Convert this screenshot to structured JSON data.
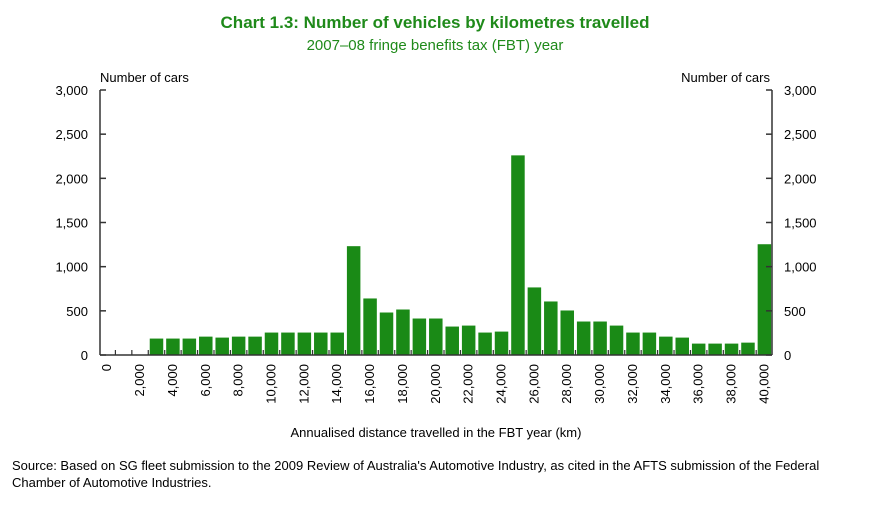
{
  "chart_data": {
    "type": "bar",
    "title": "Chart 1.3: Number of vehicles by kilometres travelled",
    "subtitle": "2007–08 fringe benefits tax (FBT) year",
    "xlabel": "Annualised distance travelled in the FBT year (km)",
    "ylabel_left": "Number of cars",
    "ylabel_right": "Number of cars",
    "ylim": [
      0,
      3000
    ],
    "yticks": [
      "0",
      "500",
      "1,000",
      "1,500",
      "2,000",
      "2,500",
      "3,000"
    ],
    "x": [
      0,
      1000,
      2000,
      3000,
      4000,
      5000,
      6000,
      7000,
      8000,
      9000,
      10000,
      11000,
      12000,
      13000,
      14000,
      15000,
      16000,
      17000,
      18000,
      19000,
      20000,
      21000,
      22000,
      23000,
      24000,
      25000,
      26000,
      27000,
      28000,
      29000,
      30000,
      31000,
      32000,
      33000,
      34000,
      35000,
      36000,
      37000,
      38000,
      39000,
      40000
    ],
    "xtick_labels": [
      "0",
      "2,000",
      "4,000",
      "6,000",
      "8,000",
      "10,000",
      "12,000",
      "14,000",
      "16,000",
      "18,000",
      "20,000",
      "22,000",
      "24,000",
      "26,000",
      "28,000",
      "30,000",
      "32,000",
      "34,000",
      "36,000",
      "38,000",
      "40,000"
    ],
    "values": [
      0,
      0,
      0,
      186,
      186,
      186,
      208,
      197,
      208,
      208,
      254,
      254,
      254,
      254,
      254,
      1232,
      640,
      481,
      515,
      413,
      413,
      322,
      333,
      254,
      265,
      2260,
      765,
      606,
      504,
      379,
      379,
      333,
      254,
      254,
      208,
      197,
      129,
      129,
      129,
      140,
      1254
    ],
    "color": "#1a8a16"
  },
  "source": "Source: Based on SG fleet submission to the 2009 Review of Australia's Automotive Industry, as cited in the AFTS submission of the Federal Chamber of Automotive Industries."
}
